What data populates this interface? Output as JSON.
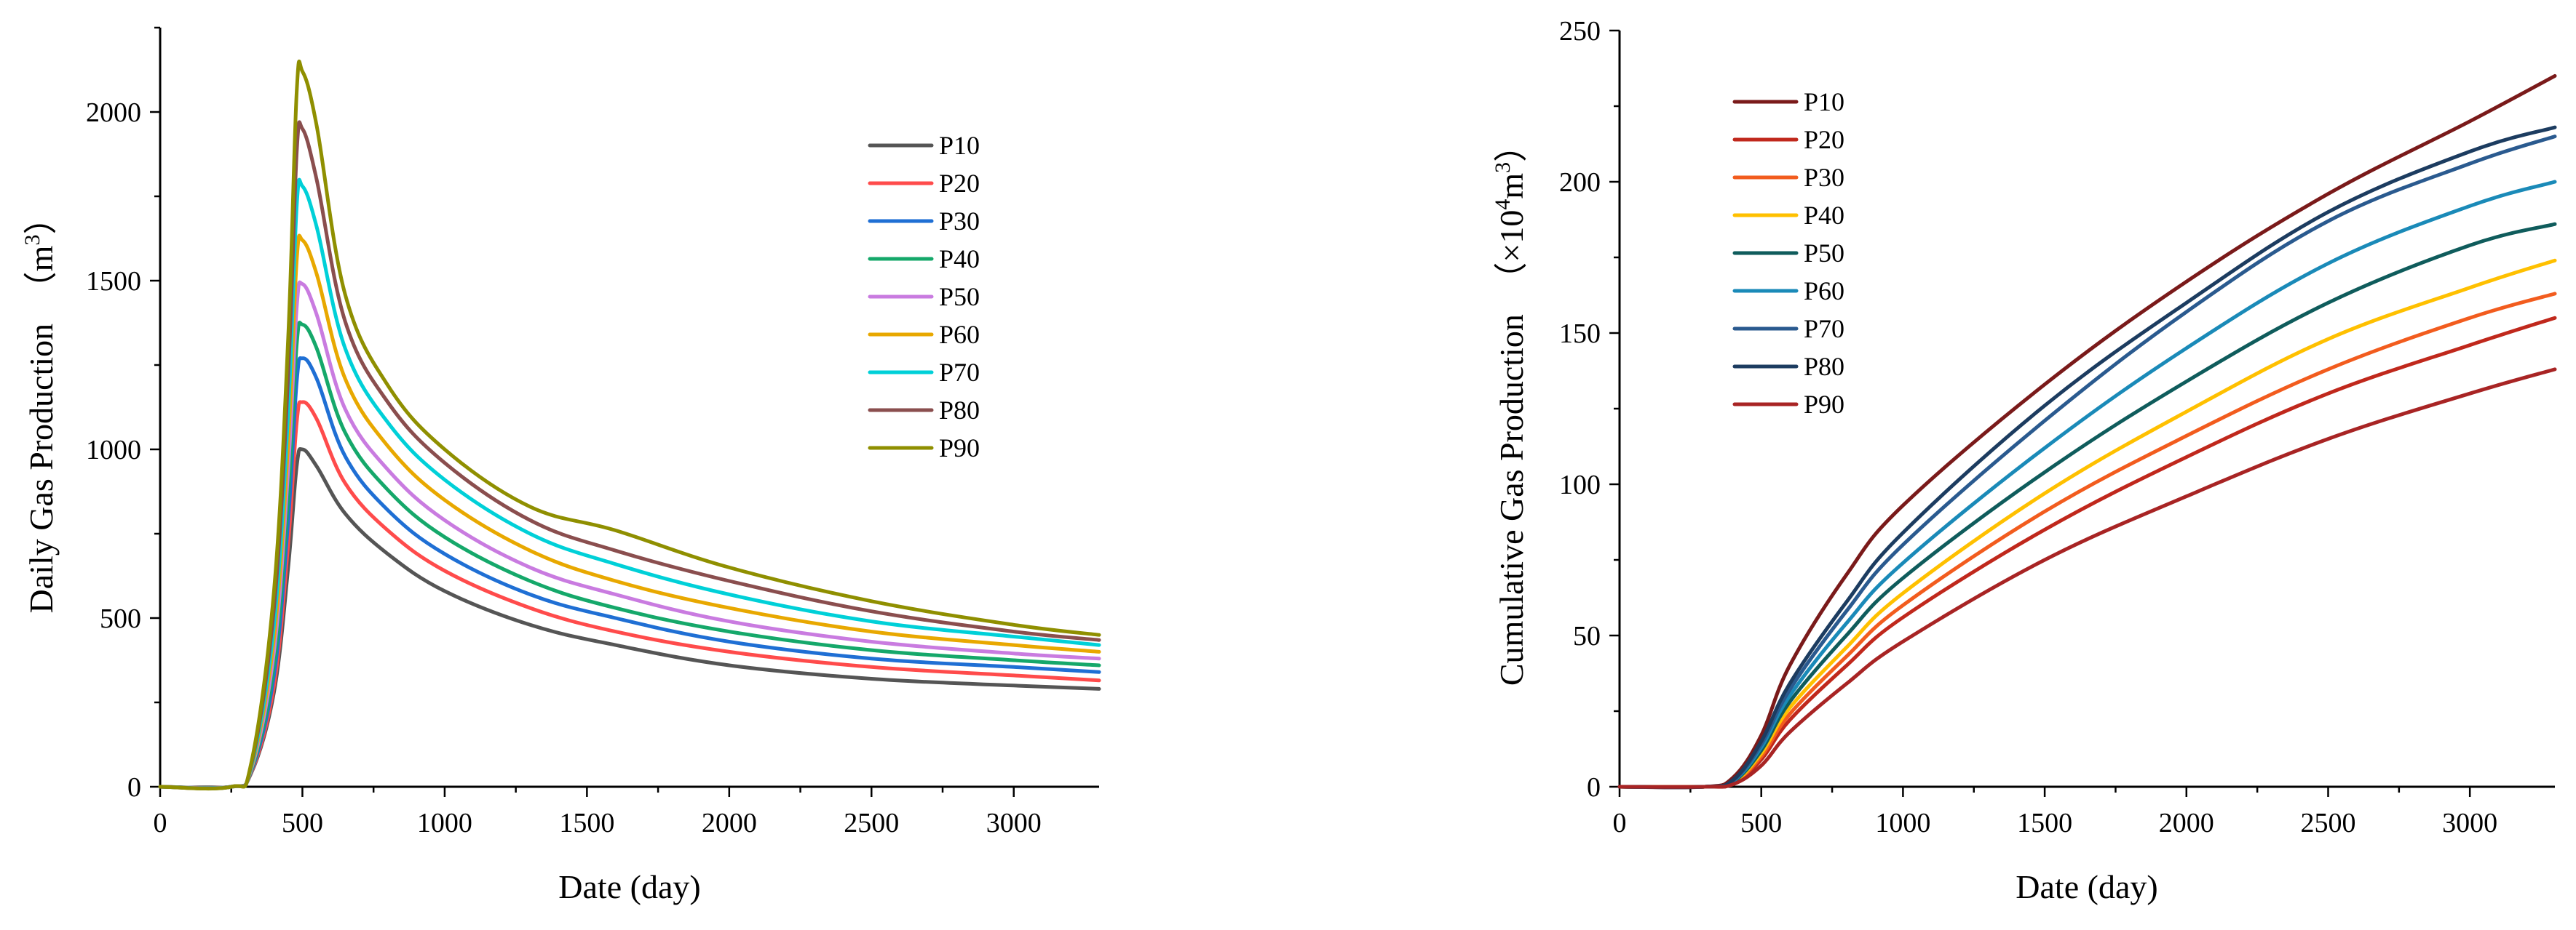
{
  "chart_data": [
    {
      "type": "line",
      "title": "",
      "xlabel": "Date (day)",
      "ylabel_main": "Daily Gas Production",
      "ylabel_unit_prefix": "（m",
      "ylabel_unit_sup": "3",
      "ylabel_unit_suffix": "）",
      "xlim": [
        0,
        3300
      ],
      "ylim": [
        0,
        2250
      ],
      "xticks": [
        0,
        500,
        1000,
        1500,
        2000,
        2500,
        3000
      ],
      "xtick_labels": [
        "0",
        "500",
        "1000",
        "1500",
        "2000",
        "2500",
        "3000"
      ],
      "yticks": [
        0,
        500,
        1000,
        1500,
        2000
      ],
      "ytick_labels": [
        "0",
        "500",
        "1000",
        "1500",
        "2000"
      ],
      "legend_position": "top-right",
      "x": [
        0,
        250,
        320,
        400,
        450,
        480,
        500,
        550,
        650,
        800,
        1000,
        1300,
        1600,
        2000,
        2500,
        3000,
        3300
      ],
      "series": [
        {
          "name": "P10",
          "color": "#555555",
          "values": [
            0,
            0,
            40,
            280,
            650,
            950,
            1000,
            950,
            810,
            690,
            580,
            480,
            420,
            360,
            320,
            300,
            290
          ]
        },
        {
          "name": "P20",
          "color": "#ff4b4b",
          "values": [
            0,
            0,
            42,
            300,
            720,
            1080,
            1140,
            1090,
            900,
            760,
            640,
            530,
            460,
            400,
            355,
            330,
            315
          ]
        },
        {
          "name": "P30",
          "color": "#1f6fd4",
          "values": [
            0,
            0,
            45,
            330,
            790,
            1200,
            1270,
            1210,
            980,
            820,
            690,
            570,
            500,
            430,
            380,
            355,
            340
          ]
        },
        {
          "name": "P40",
          "color": "#15a86a",
          "values": [
            0,
            0,
            48,
            360,
            860,
            1310,
            1370,
            1300,
            1050,
            880,
            740,
            610,
            530,
            460,
            405,
            375,
            360
          ]
        },
        {
          "name": "P50",
          "color": "#c97be0",
          "values": [
            0,
            0,
            52,
            400,
            940,
            1420,
            1490,
            1400,
            1120,
            940,
            790,
            650,
            570,
            490,
            430,
            395,
            380
          ]
        },
        {
          "name": "P60",
          "color": "#e8a800",
          "values": [
            0,
            0,
            56,
            440,
            1020,
            1560,
            1620,
            1520,
            1210,
            1010,
            850,
            700,
            610,
            530,
            460,
            420,
            400
          ]
        },
        {
          "name": "P70",
          "color": "#00d0d8",
          "values": [
            0,
            0,
            60,
            480,
            1110,
            1720,
            1780,
            1660,
            1300,
            1080,
            910,
            750,
            660,
            570,
            490,
            445,
            420
          ]
        },
        {
          "name": "P80",
          "color": "#8a4e4e",
          "values": [
            0,
            0,
            65,
            530,
            1220,
            1880,
            1950,
            1800,
            1380,
            1140,
            960,
            790,
            700,
            610,
            520,
            460,
            435
          ]
        },
        {
          "name": "P90",
          "color": "#8f8f00",
          "values": [
            0,
            0,
            70,
            580,
            1330,
            2060,
            2120,
            1960,
            1460,
            1190,
            1000,
            830,
            760,
            650,
            550,
            480,
            450
          ]
        }
      ]
    },
    {
      "type": "line",
      "title": "",
      "xlabel": "Date (day)",
      "ylabel_main": "Cumulative Gas Production",
      "ylabel_unit_prefix": "（×10",
      "ylabel_unit_sup": "4",
      "ylabel_unit_mid": "m",
      "ylabel_unit_sup2": "3",
      "ylabel_unit_suffix": "）",
      "xlim": [
        0,
        3300
      ],
      "ylim": [
        0,
        250
      ],
      "xticks": [
        0,
        500,
        1000,
        1500,
        2000,
        2500,
        3000
      ],
      "xtick_labels": [
        "0",
        "500",
        "1000",
        "1500",
        "2000",
        "2500",
        "3000"
      ],
      "yticks": [
        0,
        50,
        100,
        150,
        200,
        250
      ],
      "ytick_labels": [
        "0",
        "50",
        "100",
        "150",
        "200",
        "250"
      ],
      "legend_position": "top-left",
      "x": [
        0,
        300,
        400,
        500,
        600,
        800,
        1000,
        1500,
        2000,
        2500,
        3000,
        3300
      ],
      "series": [
        {
          "name": "P10",
          "color": "#7a1a1a",
          "values": [
            0,
            0,
            3,
            17,
            40,
            70,
            93,
            133,
            167,
            196,
            220,
            235
          ]
        },
        {
          "name": "P20",
          "color": "#c0281c",
          "values": [
            0,
            0,
            1,
            9,
            22,
            40,
            56,
            85,
            109,
            130,
            146,
            155
          ]
        },
        {
          "name": "P30",
          "color": "#f25c1e",
          "values": [
            0,
            0,
            1.2,
            10,
            24,
            43,
            60,
            91,
            116,
            138,
            155,
            163
          ]
        },
        {
          "name": "P40",
          "color": "#ffc000",
          "values": [
            0,
            0,
            1.4,
            11,
            26,
            46,
            64,
            97,
            124,
            148,
            165,
            174
          ]
        },
        {
          "name": "P50",
          "color": "#0f5c5c",
          "values": [
            0,
            0,
            1.6,
            12,
            28,
            50,
            69,
            104,
            134,
            160,
            179,
            186
          ]
        },
        {
          "name": "P60",
          "color": "#1a8ab8",
          "values": [
            0,
            0,
            1.8,
            13,
            30,
            54,
            74,
            112,
            145,
            173,
            192,
            200
          ]
        },
        {
          "name": "P70",
          "color": "#2a5a8f",
          "values": [
            0,
            0,
            2,
            14,
            32,
            58,
            80,
            121,
            157,
            187,
            206,
            215
          ]
        },
        {
          "name": "P80",
          "color": "#1c3c60",
          "values": [
            0,
            0,
            2.2,
            15,
            34,
            61,
            84,
            126,
            160,
            190,
            210,
            218
          ]
        },
        {
          "name": "P90",
          "color": "#a82424",
          "values": [
            0,
            0,
            0.8,
            7,
            18,
            34,
            48,
            75,
            96,
            115,
            130,
            138
          ]
        }
      ]
    }
  ]
}
